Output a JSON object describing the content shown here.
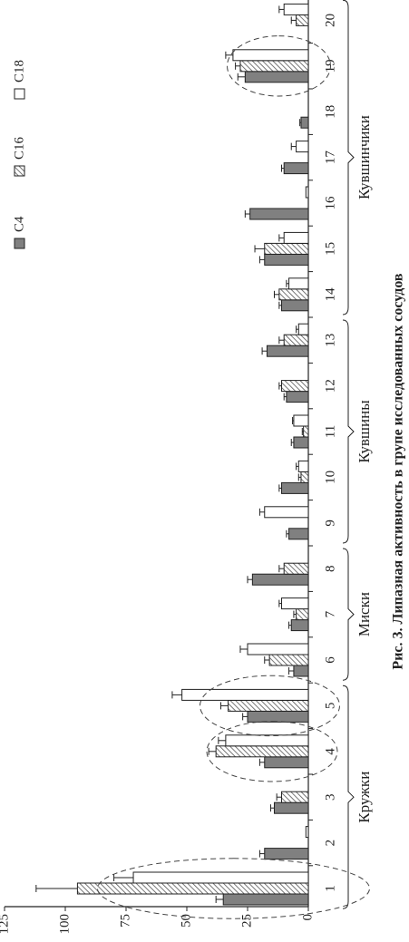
{
  "chart_data": {
    "type": "bar",
    "caption": "Рис. 3. Липазная активность в групе исследованных сосудов",
    "categories": [
      "1",
      "2",
      "3",
      "4",
      "5",
      "6",
      "7",
      "8",
      "9",
      "10",
      "11",
      "12",
      "13",
      "14",
      "15",
      "16",
      "17",
      "18",
      "19",
      "20"
    ],
    "groups": [
      "Кружки",
      "Миски",
      "Кувшины",
      "Кувшинчики"
    ],
    "series": [
      {
        "name": "C4",
        "color": "#808080",
        "fill": "solid",
        "values": [
          35,
          18,
          14,
          18,
          25,
          6,
          7,
          23,
          8,
          11,
          6,
          9,
          17,
          11,
          18,
          24,
          10,
          3,
          26,
          0
        ],
        "errors": [
          3,
          2,
          1.5,
          2,
          2,
          2,
          1,
          2,
          1,
          1,
          1,
          1,
          2,
          1,
          2,
          2,
          1,
          0.5,
          3,
          null
        ]
      },
      {
        "name": "C16",
        "color": "#808080",
        "fill": "hatch",
        "values": [
          95,
          0,
          11,
          38,
          33,
          16,
          5,
          10,
          0,
          3,
          2,
          11,
          10,
          12,
          18,
          0,
          0,
          0,
          28,
          5
        ],
        "errors": [
          17,
          null,
          2,
          3,
          3,
          2,
          1,
          2,
          null,
          1,
          0.5,
          1,
          2,
          2,
          4,
          null,
          null,
          null,
          2,
          2
        ]
      },
      {
        "name": "C18",
        "color": "#ffffff",
        "fill": "solid",
        "values": [
          72,
          1,
          0,
          34,
          52,
          25,
          11,
          0,
          18,
          4,
          6,
          0,
          4,
          8,
          10,
          1,
          5,
          0,
          31,
          10
        ],
        "errors": [
          8,
          null,
          null,
          3,
          4,
          3,
          1,
          null,
          2,
          1,
          0.5,
          null,
          1,
          1,
          2,
          null,
          2,
          null,
          3,
          2
        ]
      }
    ],
    "ylim": [
      0,
      125
    ],
    "yticks": [
      0,
      25,
      50,
      75,
      100,
      125
    ],
    "legend": "top-right"
  }
}
